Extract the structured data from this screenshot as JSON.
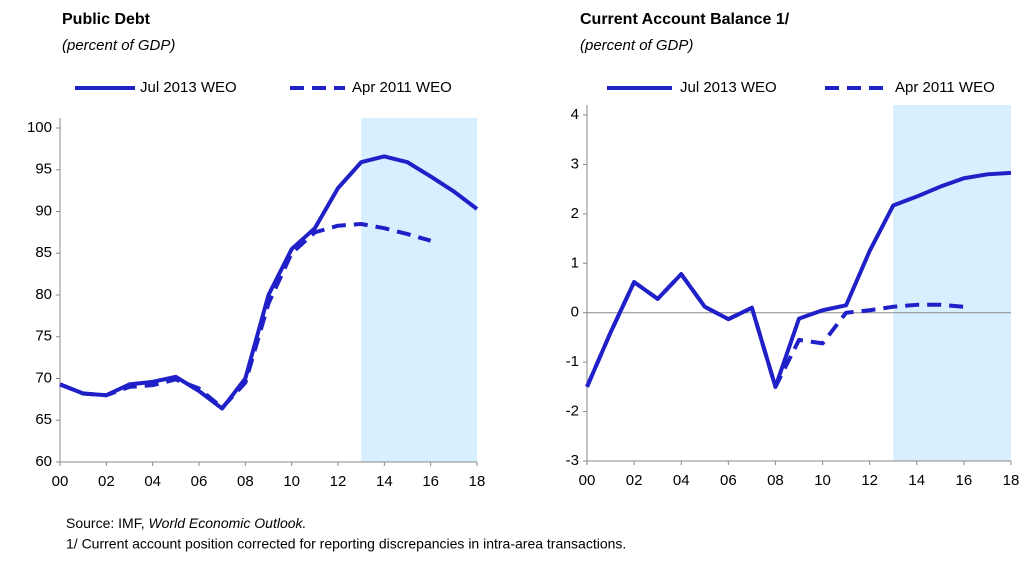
{
  "chart_data": [
    {
      "type": "line",
      "title": "Public Debt",
      "subtitle": "(percent of GDP)",
      "x": [
        0,
        1,
        2,
        3,
        4,
        5,
        6,
        7,
        8,
        9,
        10,
        11,
        12,
        13,
        14,
        15,
        16,
        17,
        18
      ],
      "series": [
        {
          "name": "Jul 2013 WEO",
          "color": "#2020c8",
          "dash": false,
          "values": [
            69.3,
            68.2,
            68.0,
            69.3,
            69.6,
            70.2,
            68.5,
            66.4,
            70.0,
            80.0,
            85.5,
            88.0,
            92.8,
            95.9,
            96.6,
            95.9,
            94.2,
            92.4,
            90.3
          ]
        },
        {
          "name": "Apr 2011 WEO",
          "color": "#2020c8",
          "dash": true,
          "values": [
            69.3,
            68.2,
            68.0,
            69.0,
            69.2,
            69.9,
            68.8,
            66.5,
            69.5,
            79.0,
            85.0,
            87.5,
            88.3,
            88.5,
            88.0,
            87.3,
            86.5,
            null,
            null
          ]
        }
      ],
      "shaded_region": [
        13,
        18
      ],
      "xlim": [
        0,
        18
      ],
      "xticks": [
        {
          "value": 0,
          "label": "00"
        },
        {
          "value": 2,
          "label": "02"
        },
        {
          "value": 4,
          "label": "04"
        },
        {
          "value": 6,
          "label": "06"
        },
        {
          "value": 8,
          "label": "08"
        },
        {
          "value": 10,
          "label": "10"
        },
        {
          "value": 12,
          "label": "12"
        },
        {
          "value": 14,
          "label": "14"
        },
        {
          "value": 16,
          "label": "16"
        },
        {
          "value": 18,
          "label": "18"
        }
      ],
      "ylim": [
        60,
        100
      ],
      "yticks": [
        60,
        65,
        70,
        75,
        80,
        85,
        90,
        95,
        100
      ]
    },
    {
      "type": "line",
      "title": "Current Account Balance 1/",
      "subtitle": "(percent of GDP)",
      "x": [
        0,
        1,
        2,
        3,
        4,
        5,
        6,
        7,
        8,
        9,
        10,
        11,
        12,
        13,
        14,
        15,
        16,
        17,
        18
      ],
      "series": [
        {
          "name": "Jul 2013 WEO",
          "color": "#2020c8",
          "dash": false,
          "values": [
            -1.5,
            -0.4,
            0.62,
            0.28,
            0.78,
            0.12,
            -0.13,
            0.1,
            -1.5,
            -0.12,
            0.05,
            0.15,
            1.25,
            2.17,
            2.35,
            2.55,
            2.72,
            2.8,
            2.83
          ]
        },
        {
          "name": "Apr 2011 WEO",
          "color": "#2020c8",
          "dash": true,
          "values": [
            -1.5,
            -0.4,
            0.62,
            0.28,
            0.78,
            0.12,
            -0.13,
            0.1,
            -1.5,
            -0.55,
            -0.62,
            0.0,
            0.05,
            0.12,
            0.16,
            0.16,
            0.12,
            null,
            null
          ]
        }
      ],
      "shaded_region": [
        13,
        18
      ],
      "xlim": [
        0,
        18
      ],
      "xticks": [
        {
          "value": 0,
          "label": "00"
        },
        {
          "value": 2,
          "label": "02"
        },
        {
          "value": 4,
          "label": "04"
        },
        {
          "value": 6,
          "label": "06"
        },
        {
          "value": 8,
          "label": "08"
        },
        {
          "value": 10,
          "label": "10"
        },
        {
          "value": 12,
          "label": "12"
        },
        {
          "value": 14,
          "label": "14"
        },
        {
          "value": 16,
          "label": "16"
        },
        {
          "value": 18,
          "label": "18"
        }
      ],
      "ylim": [
        -3,
        4
      ],
      "yticks": [
        -3,
        -2,
        -1,
        0,
        1,
        2,
        3,
        4
      ]
    }
  ],
  "notes": {
    "source_prefix": "Source: IMF, ",
    "source_title": "World Economic Outlook.",
    "footnote": "1/ Current account position corrected for reporting discrepancies in intra-area transactions."
  }
}
